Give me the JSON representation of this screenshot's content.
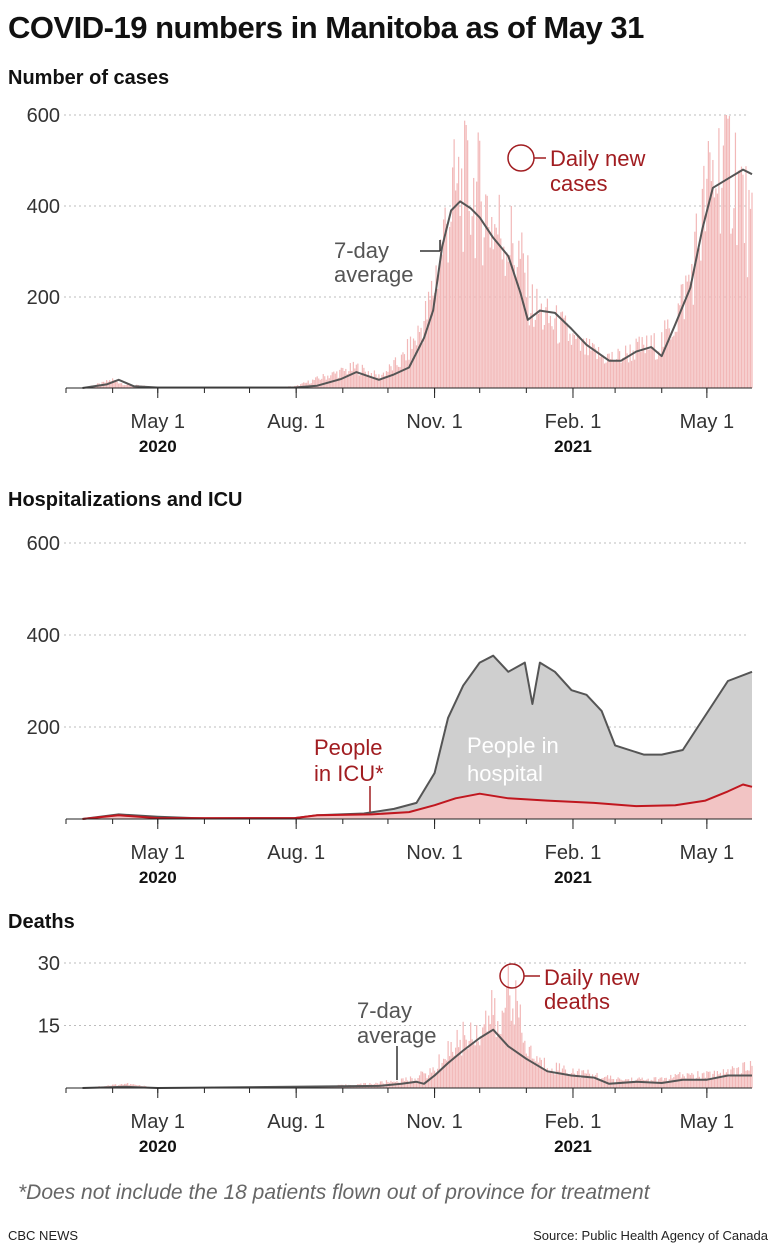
{
  "title": "COVID-19 numbers in Manitoba as of May 31",
  "footnote": "*Does not include the 18 patients flown out of province for treatment",
  "credit": "CBC NEWS",
  "source": "Source: Public Health Agency of Canada",
  "colors": {
    "bar": "#f2b8b8",
    "line": "#555555",
    "icu": "#c0171f",
    "icu_fill": "#f2c4c4",
    "hospital_fill": "#cfcfcf",
    "annotation_red": "#a11d21"
  },
  "chart_data": [
    {
      "type": "bar",
      "title": "Number of cases",
      "x_ticks": [
        "May 1",
        "Aug. 1",
        "Nov. 1",
        "Feb. 1",
        "May 1"
      ],
      "x_tick_dates": [
        "2020-05-01",
        "2020-08-01",
        "2020-11-01",
        "2021-02-01",
        "2021-05-01"
      ],
      "year_labels": [
        "2020",
        "2021"
      ],
      "x_range": [
        "2020-03-01",
        "2021-05-31"
      ],
      "ylim": [
        0,
        600
      ],
      "y_ticks": [
        200,
        400,
        600
      ],
      "grid": true,
      "series": [
        {
          "name": "Daily new cases",
          "type": "bar",
          "points": [
            [
              "2020-03-12",
              0
            ],
            [
              "2020-03-25",
              10
            ],
            [
              "2020-04-01",
              18
            ],
            [
              "2020-04-10",
              7
            ],
            [
              "2020-05-01",
              2
            ],
            [
              "2020-07-15",
              1
            ],
            [
              "2020-08-01",
              4
            ],
            [
              "2020-08-20",
              25
            ],
            [
              "2020-09-10",
              45
            ],
            [
              "2020-09-25",
              25
            ],
            [
              "2020-10-10",
              60
            ],
            [
              "2020-10-20",
              110
            ],
            [
              "2020-10-28",
              170
            ],
            [
              "2020-11-05",
              300
            ],
            [
              "2020-11-12",
              410
            ],
            [
              "2020-11-20",
              440
            ],
            [
              "2020-12-01",
              420
            ],
            [
              "2020-12-10",
              360
            ],
            [
              "2020-12-20",
              330
            ],
            [
              "2020-12-28",
              280
            ],
            [
              "2021-01-05",
              180
            ],
            [
              "2021-01-15",
              150
            ],
            [
              "2021-01-25",
              130
            ],
            [
              "2021-02-05",
              90
            ],
            [
              "2021-02-20",
              70
            ],
            [
              "2021-03-01",
              65
            ],
            [
              "2021-03-15",
              85
            ],
            [
              "2021-03-31",
              95
            ],
            [
              "2021-04-10",
              150
            ],
            [
              "2021-04-20",
              240
            ],
            [
              "2021-05-01",
              420
            ],
            [
              "2021-05-10",
              500
            ],
            [
              "2021-05-20",
              480
            ],
            [
              "2021-05-31",
              320
            ]
          ]
        },
        {
          "name": "7-day average",
          "type": "line",
          "points": [
            [
              "2020-03-12",
              0
            ],
            [
              "2020-03-28",
              8
            ],
            [
              "2020-04-05",
              18
            ],
            [
              "2020-04-15",
              4
            ],
            [
              "2020-05-01",
              1
            ],
            [
              "2020-07-31",
              1
            ],
            [
              "2020-08-15",
              5
            ],
            [
              "2020-08-31",
              20
            ],
            [
              "2020-09-10",
              35
            ],
            [
              "2020-09-25",
              18
            ],
            [
              "2020-10-05",
              30
            ],
            [
              "2020-10-15",
              45
            ],
            [
              "2020-10-25",
              110
            ],
            [
              "2020-10-31",
              170
            ],
            [
              "2020-11-06",
              310
            ],
            [
              "2020-11-12",
              390
            ],
            [
              "2020-11-18",
              410
            ],
            [
              "2020-11-25",
              395
            ],
            [
              "2020-12-01",
              375
            ],
            [
              "2020-12-10",
              330
            ],
            [
              "2020-12-20",
              290
            ],
            [
              "2020-12-28",
              210
            ],
            [
              "2021-01-02",
              150
            ],
            [
              "2021-01-10",
              170
            ],
            [
              "2021-01-20",
              165
            ],
            [
              "2021-01-31",
              130
            ],
            [
              "2021-02-10",
              95
            ],
            [
              "2021-02-25",
              60
            ],
            [
              "2021-03-05",
              60
            ],
            [
              "2021-03-15",
              80
            ],
            [
              "2021-03-25",
              90
            ],
            [
              "2021-04-01",
              70
            ],
            [
              "2021-04-10",
              140
            ],
            [
              "2021-04-20",
              220
            ],
            [
              "2021-04-28",
              350
            ],
            [
              "2021-05-05",
              440
            ],
            [
              "2021-05-15",
              460
            ],
            [
              "2021-05-25",
              480
            ],
            [
              "2021-05-31",
              470
            ]
          ]
        }
      ],
      "annotations": [
        "7-day average",
        "Daily new cases"
      ]
    },
    {
      "type": "area",
      "title": "Hospitalizations and ICU",
      "x_ticks": [
        "May 1",
        "Aug. 1",
        "Nov. 1",
        "Feb. 1",
        "May 1"
      ],
      "x_tick_dates": [
        "2020-05-01",
        "2020-08-01",
        "2020-11-01",
        "2021-02-01",
        "2021-05-01"
      ],
      "year_labels": [
        "2020",
        "2021"
      ],
      "x_range": [
        "2020-03-01",
        "2021-05-31"
      ],
      "ylim": [
        0,
        600
      ],
      "y_ticks": [
        200,
        400,
        600
      ],
      "grid": true,
      "series": [
        {
          "name": "People in hospital",
          "type": "area",
          "points": [
            [
              "2020-03-12",
              0
            ],
            [
              "2020-04-05",
              10
            ],
            [
              "2020-05-01",
              5
            ],
            [
              "2020-06-01",
              1
            ],
            [
              "2020-07-31",
              2
            ],
            [
              "2020-08-15",
              8
            ],
            [
              "2020-09-15",
              12
            ],
            [
              "2020-10-05",
              22
            ],
            [
              "2020-10-20",
              35
            ],
            [
              "2020-11-01",
              100
            ],
            [
              "2020-11-10",
              220
            ],
            [
              "2020-11-20",
              290
            ],
            [
              "2020-12-01",
              340
            ],
            [
              "2020-12-10",
              355
            ],
            [
              "2020-12-20",
              320
            ],
            [
              "2020-12-31",
              340
            ],
            [
              "2021-01-05",
              250
            ],
            [
              "2021-01-10",
              340
            ],
            [
              "2021-01-20",
              320
            ],
            [
              "2021-01-31",
              280
            ],
            [
              "2021-02-10",
              270
            ],
            [
              "2021-02-20",
              235
            ],
            [
              "2021-03-01",
              160
            ],
            [
              "2021-03-20",
              140
            ],
            [
              "2021-04-01",
              140
            ],
            [
              "2021-04-15",
              150
            ],
            [
              "2021-04-25",
              200
            ],
            [
              "2021-05-05",
              250
            ],
            [
              "2021-05-15",
              300
            ],
            [
              "2021-05-31",
              320
            ]
          ]
        },
        {
          "name": "People in ICU*",
          "type": "area",
          "points": [
            [
              "2020-03-12",
              0
            ],
            [
              "2020-04-05",
              8
            ],
            [
              "2020-05-01",
              2
            ],
            [
              "2020-07-31",
              2
            ],
            [
              "2020-08-15",
              8
            ],
            [
              "2020-09-20",
              10
            ],
            [
              "2020-10-15",
              15
            ],
            [
              "2020-11-01",
              30
            ],
            [
              "2020-11-15",
              45
            ],
            [
              "2020-12-01",
              55
            ],
            [
              "2020-12-20",
              45
            ],
            [
              "2021-01-15",
              40
            ],
            [
              "2021-02-15",
              35
            ],
            [
              "2021-03-15",
              28
            ],
            [
              "2021-04-10",
              30
            ],
            [
              "2021-04-30",
              40
            ],
            [
              "2021-05-15",
              60
            ],
            [
              "2021-05-25",
              75
            ],
            [
              "2021-05-31",
              70
            ]
          ]
        }
      ],
      "annotations": [
        "People in ICU*",
        "People in hospital"
      ]
    },
    {
      "type": "bar",
      "title": "Deaths",
      "x_ticks": [
        "May 1",
        "Aug. 1",
        "Nov. 1",
        "Feb. 1",
        "May 1"
      ],
      "x_tick_dates": [
        "2020-05-01",
        "2020-08-01",
        "2020-11-01",
        "2021-02-01",
        "2021-05-01"
      ],
      "year_labels": [
        "2020",
        "2021"
      ],
      "x_range": [
        "2020-03-01",
        "2021-05-31"
      ],
      "ylim": [
        0,
        30
      ],
      "y_ticks": [
        15,
        30
      ],
      "grid": true,
      "series": [
        {
          "name": "Daily new deaths",
          "type": "bar",
          "points": [
            [
              "2020-03-12",
              0
            ],
            [
              "2020-04-10",
              1
            ],
            [
              "2020-05-01",
              0
            ],
            [
              "2020-08-01",
              0
            ],
            [
              "2020-09-20",
              1
            ],
            [
              "2020-10-15",
              2
            ],
            [
              "2020-10-31",
              4
            ],
            [
              "2020-11-10",
              9
            ],
            [
              "2020-11-20",
              12
            ],
            [
              "2020-12-01",
              14
            ],
            [
              "2020-12-10",
              18
            ],
            [
              "2020-12-15",
              12
            ],
            [
              "2020-12-20",
              28
            ],
            [
              "2020-12-31",
              10
            ],
            [
              "2021-01-10",
              6
            ],
            [
              "2021-01-20",
              5
            ],
            [
              "2021-02-01",
              4
            ],
            [
              "2021-02-15",
              3
            ],
            [
              "2021-03-01",
              2
            ],
            [
              "2021-03-15",
              2
            ],
            [
              "2021-04-01",
              2
            ],
            [
              "2021-04-15",
              3
            ],
            [
              "2021-05-01",
              3
            ],
            [
              "2021-05-15",
              4
            ],
            [
              "2021-05-31",
              5
            ]
          ]
        },
        {
          "name": "7-day average",
          "type": "line",
          "points": [
            [
              "2020-03-12",
              0
            ],
            [
              "2020-04-10",
              0.3
            ],
            [
              "2020-05-01",
              0
            ],
            [
              "2020-09-25",
              0.5
            ],
            [
              "2020-10-10",
              1
            ],
            [
              "2020-10-20",
              1.5
            ],
            [
              "2020-10-25",
              1
            ],
            [
              "2020-11-01",
              3
            ],
            [
              "2020-11-10",
              6
            ],
            [
              "2020-11-20",
              9
            ],
            [
              "2020-12-01",
              12
            ],
            [
              "2020-12-10",
              14
            ],
            [
              "2020-12-20",
              10
            ],
            [
              "2021-01-01",
              7
            ],
            [
              "2021-01-15",
              4
            ],
            [
              "2021-01-31",
              3
            ],
            [
              "2021-02-15",
              2.5
            ],
            [
              "2021-02-25",
              1
            ],
            [
              "2021-03-15",
              1.5
            ],
            [
              "2021-04-01",
              1.2
            ],
            [
              "2021-04-15",
              2
            ],
            [
              "2021-05-01",
              2
            ],
            [
              "2021-05-15",
              3
            ],
            [
              "2021-05-31",
              3
            ]
          ]
        }
      ],
      "annotations": [
        "7-day average",
        "Daily new deaths"
      ]
    }
  ],
  "annotation_text": {
    "cases_avg_1": "7-day",
    "cases_avg_2": "average",
    "cases_daily_1": "Daily new",
    "cases_daily_2": "cases",
    "icu_1": "People",
    "icu_2": "in ICU*",
    "hosp_1": "People in",
    "hosp_2": "hospital",
    "deaths_avg_1": "7-day",
    "deaths_avg_2": "average",
    "deaths_daily_1": "Daily new",
    "deaths_daily_2": "deaths"
  }
}
